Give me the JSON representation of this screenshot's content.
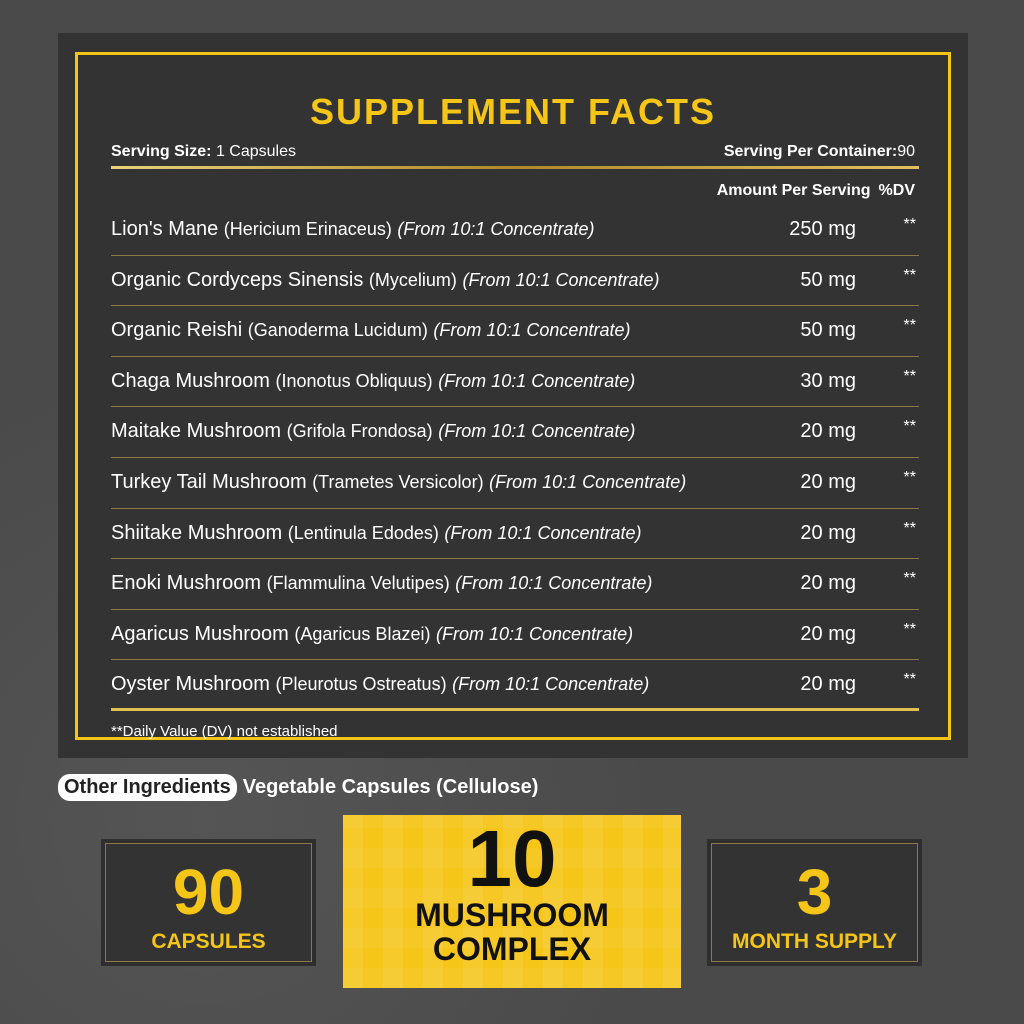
{
  "title": "SUPPLEMENT FACTS",
  "serving_size_label": "Serving Size:",
  "serving_size_value": "1 Capsules",
  "servings_label": "Serving Per Container:",
  "servings_value": "90",
  "header": {
    "amount": "Amount Per Serving",
    "dv": "%DV"
  },
  "rows": [
    {
      "name": "Lion's Mane",
      "sci": "(Hericium Erinaceus)",
      "conc": "(From 10:1 Concentrate)",
      "amount": "250 mg",
      "dv": "**"
    },
    {
      "name": "Organic Cordyceps Sinensis",
      "sci": "(Mycelium)",
      "conc": "(From 10:1 Concentrate)",
      "amount": "50 mg",
      "dv": "**"
    },
    {
      "name": "Organic Reishi",
      "sci": "(Ganoderma Lucidum)",
      "conc": "(From 10:1 Concentrate)",
      "amount": "50 mg",
      "dv": "**"
    },
    {
      "name": "Chaga Mushroom",
      "sci": "(Inonotus Obliquus)",
      "conc": "(From 10:1 Concentrate)",
      "amount": "30 mg",
      "dv": "**"
    },
    {
      "name": "Maitake Mushroom",
      "sci": "(Grifola Frondosa)",
      "conc": "(From 10:1 Concentrate)",
      "amount": "20 mg",
      "dv": "**"
    },
    {
      "name": "Turkey Tail Mushroom",
      "sci": "(Trametes Versicolor)",
      "conc": "(From 10:1 Concentrate)",
      "amount": "20 mg",
      "dv": "**"
    },
    {
      "name": "Shiitake Mushroom",
      "sci": "(Lentinula Edodes)",
      "conc": "(From 10:1 Concentrate)",
      "amount": "20 mg",
      "dv": "**"
    },
    {
      "name": "Enoki Mushroom",
      "sci": "(Flammulina Velutipes)",
      "conc": "(From 10:1 Concentrate)",
      "amount": "20 mg",
      "dv": "**"
    },
    {
      "name": "Agaricus Mushroom",
      "sci": "(Agaricus Blazei)",
      "conc": "(From 10:1 Concentrate)",
      "amount": "20 mg",
      "dv": "**"
    },
    {
      "name": "Oyster Mushroom",
      "sci": "(Pleurotus Ostreatus)",
      "conc": "(From 10:1 Concentrate)",
      "amount": "20 mg",
      "dv": "**"
    }
  ],
  "footnote": "**Daily Value (DV) not established",
  "other_label": "Other Ingredients",
  "other_value": "Vegetable Capsules (Cellulose)",
  "badges": {
    "left_big": "90",
    "left_small": "CAPSULES",
    "center_big": "10",
    "center_l1": "MUSHROOM",
    "center_l2": "COMPLEX",
    "right_big": "3",
    "right_small": "MONTH SUPPLY"
  },
  "colors": {
    "accent": "#f5c518",
    "panel": "#333333",
    "background": "#4a4a4a"
  }
}
